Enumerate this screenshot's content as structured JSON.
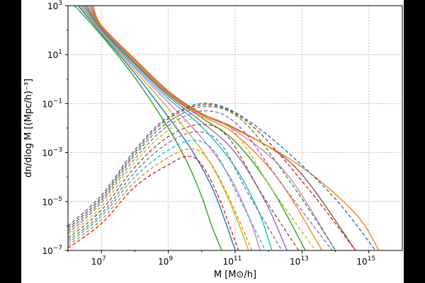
{
  "chart_data": {
    "type": "line",
    "title": "",
    "xlabel": "M [M⊙/h]",
    "ylabel": "dn/dlog M  [(Mpc/h)⁻³]",
    "xscale": "log",
    "yscale": "log",
    "xlim": [
      1000000.0,
      1e+16
    ],
    "ylim": [
      1e-07,
      1000.0
    ],
    "grid": true,
    "legend": "none",
    "x_ticks": [
      {
        "value": 10000000.0,
        "base": "10",
        "exp": "7"
      },
      {
        "value": 1000000000.0,
        "base": "10",
        "exp": "9"
      },
      {
        "value": 100000000000.0,
        "base": "10",
        "exp": "11"
      },
      {
        "value": 10000000000000.0,
        "base": "10",
        "exp": "13"
      },
      {
        "value": 1000000000000000.0,
        "base": "10",
        "exp": "15"
      }
    ],
    "y_ticks": [
      {
        "value": 1000.0,
        "base": "10",
        "exp": "3"
      },
      {
        "value": 10,
        "base": "10",
        "exp": "1"
      },
      {
        "value": 0.1,
        "base": "10",
        "exp": "−1"
      },
      {
        "value": 0.001,
        "base": "10",
        "exp": "−3"
      },
      {
        "value": 1e-05,
        "base": "10",
        "exp": "−5"
      },
      {
        "value": 1e-07,
        "base": "10",
        "exp": "−7"
      }
    ],
    "series": [
      {
        "style": "solid",
        "color": "#2ca02c",
        "points": [
          [
            6.2,
            3.0
          ],
          [
            7.0,
            1.78
          ],
          [
            8.0,
            0.06
          ],
          [
            9.0,
            -2.0
          ],
          [
            9.6,
            -3.5
          ],
          [
            10.0,
            -4.8
          ],
          [
            10.3,
            -6.0
          ],
          [
            10.6,
            -7.0
          ]
        ]
      },
      {
        "style": "solid",
        "color": "#1f77b4",
        "points": [
          [
            6.3,
            3.0
          ],
          [
            7.0,
            1.85
          ],
          [
            8.0,
            0.23
          ],
          [
            9.0,
            -1.55
          ],
          [
            9.7,
            -2.9
          ],
          [
            10.3,
            -4.4
          ],
          [
            10.7,
            -5.8
          ],
          [
            11.0,
            -7.0
          ]
        ]
      },
      {
        "style": "solid",
        "color": "#bcbd22",
        "points": [
          [
            6.35,
            3.0
          ],
          [
            7.0,
            1.9
          ],
          [
            8.0,
            0.35
          ],
          [
            9.0,
            -1.2
          ],
          [
            10.0,
            -2.9
          ],
          [
            10.6,
            -4.3
          ],
          [
            11.1,
            -5.9
          ],
          [
            11.4,
            -7.0
          ]
        ]
      },
      {
        "style": "solid",
        "color": "#e377c2",
        "points": [
          [
            6.4,
            3.0
          ],
          [
            7.0,
            1.95
          ],
          [
            8.0,
            0.45
          ],
          [
            9.0,
            -0.95
          ],
          [
            10.0,
            -2.4
          ],
          [
            10.8,
            -3.9
          ],
          [
            11.4,
            -5.6
          ],
          [
            11.75,
            -7.0
          ]
        ]
      },
      {
        "style": "solid",
        "color": "#17becf",
        "points": [
          [
            6.45,
            3.0
          ],
          [
            7.0,
            2.0
          ],
          [
            8.0,
            0.52
          ],
          [
            9.0,
            -0.8
          ],
          [
            10.0,
            -1.95
          ],
          [
            11.0,
            -3.6
          ],
          [
            11.7,
            -5.4
          ],
          [
            12.1,
            -7.0
          ]
        ]
      },
      {
        "style": "solid",
        "color": "#9467bd",
        "points": [
          [
            6.5,
            3.0
          ],
          [
            7.0,
            2.05
          ],
          [
            8.0,
            0.6
          ],
          [
            9.0,
            -0.7
          ],
          [
            10.0,
            -1.75
          ],
          [
            11.0,
            -3.0
          ],
          [
            11.9,
            -5.0
          ],
          [
            12.55,
            -7.0
          ]
        ]
      },
      {
        "style": "solid",
        "color": "#2ca02c",
        "points": [
          [
            6.55,
            3.0
          ],
          [
            7.0,
            2.08
          ],
          [
            8.0,
            0.66
          ],
          [
            9.0,
            -0.63
          ],
          [
            10.0,
            -1.58
          ],
          [
            11.0,
            -2.55
          ],
          [
            12.1,
            -4.5
          ],
          [
            13.1,
            -7.0
          ]
        ]
      },
      {
        "style": "solid",
        "color": "#ff7f0e",
        "points": [
          [
            6.6,
            3.0
          ],
          [
            7.0,
            2.12
          ],
          [
            8.0,
            0.72
          ],
          [
            9.0,
            -0.58
          ],
          [
            10.0,
            -1.5
          ],
          [
            11.0,
            -2.25
          ],
          [
            12.3,
            -4.1
          ],
          [
            13.6,
            -7.0
          ]
        ]
      },
      {
        "style": "solid",
        "color": "#e377c2",
        "points": [
          [
            6.65,
            3.0
          ],
          [
            7.0,
            2.15
          ],
          [
            8.0,
            0.76
          ],
          [
            9.0,
            -0.54
          ],
          [
            10.0,
            -1.45
          ],
          [
            11.0,
            -2.1
          ],
          [
            12.5,
            -3.8
          ],
          [
            14.0,
            -7.0
          ]
        ]
      },
      {
        "style": "solid",
        "color": "#8c564b",
        "points": [
          [
            6.7,
            3.0
          ],
          [
            7.0,
            2.18
          ],
          [
            8.0,
            0.8
          ],
          [
            9.0,
            -0.5
          ],
          [
            10.0,
            -1.42
          ],
          [
            11.0,
            -2.03
          ],
          [
            12.8,
            -3.6
          ],
          [
            14.6,
            -7.0
          ]
        ]
      },
      {
        "style": "solid",
        "color": "#ff7f0e",
        "points": [
          [
            6.75,
            3.0
          ],
          [
            7.0,
            2.2
          ],
          [
            8.0,
            0.82
          ],
          [
            9.0,
            -0.48
          ],
          [
            10.0,
            -1.4
          ],
          [
            11.0,
            -2.0
          ],
          [
            13.0,
            -3.6
          ],
          [
            14.6,
            -5.5
          ],
          [
            15.3,
            -7.0
          ]
        ]
      },
      {
        "style": "dashed",
        "color": "#d62728",
        "points": [
          [
            6.0,
            -6.9
          ],
          [
            7.0,
            -5.9
          ],
          [
            8.0,
            -4.4
          ],
          [
            9.0,
            -3.5
          ],
          [
            9.6,
            -3.15
          ],
          [
            10.0,
            -3.5
          ],
          [
            10.5,
            -4.8
          ],
          [
            11.1,
            -7.0
          ]
        ]
      },
      {
        "style": "dashed",
        "color": "#ff7f0e",
        "points": [
          [
            6.0,
            -6.8
          ],
          [
            7.0,
            -5.75
          ],
          [
            8.0,
            -4.2
          ],
          [
            9.0,
            -3.2
          ],
          [
            9.7,
            -2.85
          ],
          [
            10.2,
            -3.3
          ],
          [
            10.8,
            -4.8
          ],
          [
            11.5,
            -7.0
          ]
        ]
      },
      {
        "style": "dashed",
        "color": "#17becf",
        "points": [
          [
            6.0,
            -6.7
          ],
          [
            7.0,
            -5.6
          ],
          [
            8.0,
            -4.0
          ],
          [
            9.0,
            -2.9
          ],
          [
            9.8,
            -2.5
          ],
          [
            10.4,
            -3.0
          ],
          [
            11.1,
            -4.8
          ],
          [
            11.9,
            -7.0
          ]
        ]
      },
      {
        "style": "dashed",
        "color": "#7f7f7f",
        "points": [
          [
            6.0,
            -6.6
          ],
          [
            7.0,
            -5.5
          ],
          [
            8.0,
            -3.8
          ],
          [
            9.0,
            -2.6
          ],
          [
            9.9,
            -2.15
          ],
          [
            10.6,
            -2.7
          ],
          [
            11.4,
            -4.7
          ],
          [
            12.4,
            -7.0
          ]
        ]
      },
      {
        "style": "dashed",
        "color": "#8c564b",
        "points": [
          [
            6.0,
            -6.5
          ],
          [
            7.0,
            -5.35
          ],
          [
            8.0,
            -3.6
          ],
          [
            9.0,
            -2.35
          ],
          [
            10.0,
            -1.85
          ],
          [
            10.8,
            -2.4
          ],
          [
            11.8,
            -4.7
          ],
          [
            12.9,
            -7.0
          ]
        ]
      },
      {
        "style": "dashed",
        "color": "#bcbd22",
        "points": [
          [
            6.0,
            -6.4
          ],
          [
            7.0,
            -5.2
          ],
          [
            8.0,
            -3.4
          ],
          [
            9.0,
            -2.1
          ],
          [
            10.05,
            -1.55
          ],
          [
            11.0,
            -2.2
          ],
          [
            12.1,
            -4.5
          ],
          [
            13.4,
            -7.0
          ]
        ]
      },
      {
        "style": "dashed",
        "color": "#9467bd",
        "points": [
          [
            6.0,
            -6.3
          ],
          [
            7.0,
            -5.05
          ],
          [
            8.0,
            -3.25
          ],
          [
            9.0,
            -1.9
          ],
          [
            10.1,
            -1.3
          ],
          [
            11.1,
            -1.9
          ],
          [
            12.4,
            -4.3
          ],
          [
            13.9,
            -7.0
          ]
        ]
      },
      {
        "style": "dashed",
        "color": "#2ca02c",
        "points": [
          [
            6.0,
            -6.2
          ],
          [
            7.0,
            -4.95
          ],
          [
            8.0,
            -3.1
          ],
          [
            9.0,
            -1.75
          ],
          [
            10.15,
            -1.12
          ],
          [
            11.3,
            -1.8
          ],
          [
            12.8,
            -4.5
          ],
          [
            14.0,
            -7.0
          ]
        ]
      },
      {
        "style": "dashed",
        "color": "#d62728",
        "points": [
          [
            6.0,
            -6.1
          ],
          [
            7.0,
            -4.85
          ],
          [
            8.0,
            -3.0
          ],
          [
            9.0,
            -1.62
          ],
          [
            10.2,
            -1.05
          ],
          [
            11.5,
            -1.9
          ],
          [
            13.2,
            -4.5
          ],
          [
            14.6,
            -7.0
          ]
        ]
      },
      {
        "style": "dashed",
        "color": "#1f77b4",
        "points": [
          [
            6.0,
            -6.0
          ],
          [
            7.0,
            -4.75
          ],
          [
            8.0,
            -2.9
          ],
          [
            9.0,
            -1.55
          ],
          [
            10.25,
            -1.0
          ],
          [
            11.7,
            -2.0
          ],
          [
            13.8,
            -4.6
          ],
          [
            15.2,
            -7.0
          ]
        ]
      }
    ]
  }
}
